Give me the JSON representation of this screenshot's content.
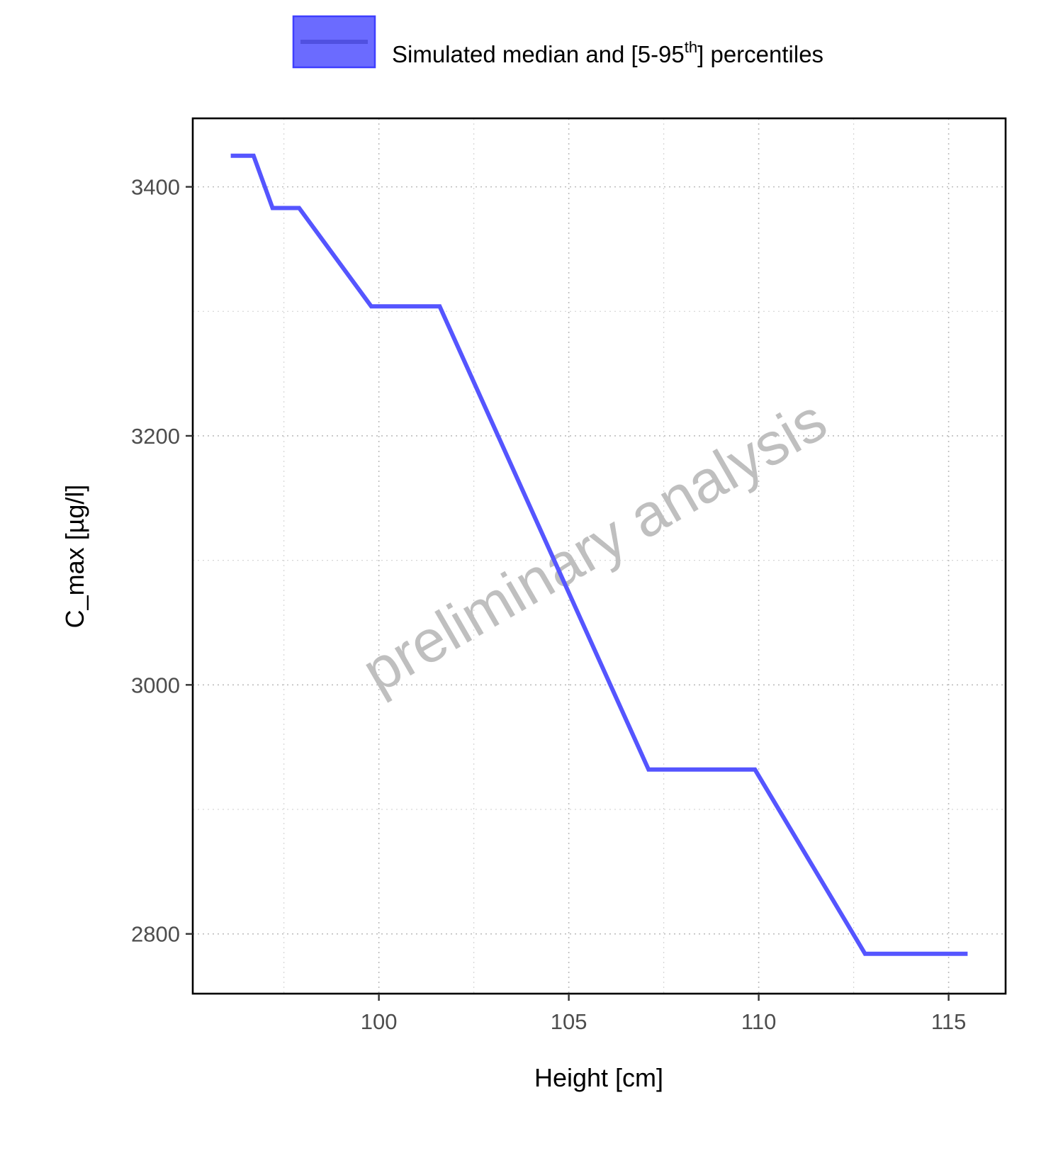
{
  "chart_data": {
    "type": "line",
    "x": [
      96.1,
      96.7,
      97.2,
      97.9,
      99.8,
      101.6,
      107.1,
      109.9,
      112.8,
      115.5
    ],
    "series": [
      {
        "name": "Simulated median and [5-95th] percentiles",
        "values": [
          3425,
          3425,
          3383,
          3383,
          3304,
          3304,
          2932,
          2932,
          2784,
          2784
        ]
      }
    ],
    "title": "",
    "xlabel": "Height [cm]",
    "ylabel": "C_max [µg/l]",
    "xlim": [
      95.1,
      116.5
    ],
    "ylim": [
      2752,
      3455
    ],
    "xticks": [
      100,
      105,
      110,
      115
    ],
    "yticks": [
      2800,
      3000,
      3200,
      3400
    ],
    "grid": true,
    "legend": {
      "placement": "top",
      "text_before_sup": "Simulated median and [5-95",
      "sup": "th",
      "text_after_sup": "] percentiles"
    },
    "watermark": "preliminary analysis",
    "colors": {
      "line": "#5555ff",
      "ribbon": "#6b6bff",
      "ribbon_border": "#3f3fff",
      "axis": "#000000",
      "tick_label": "#4d4d4d",
      "watermark": "#bfbfbf"
    }
  }
}
